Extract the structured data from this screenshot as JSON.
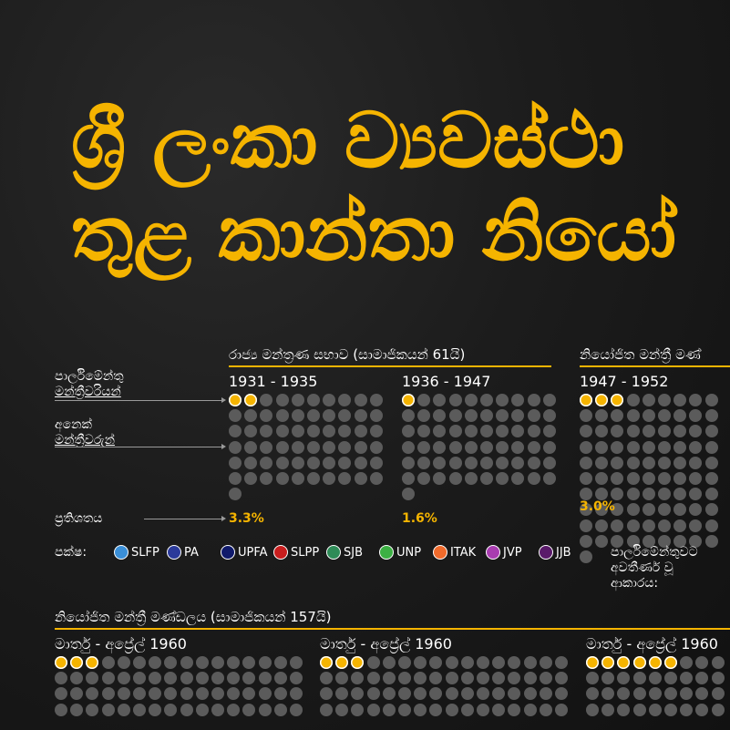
{
  "title": {
    "line1": "ශ්‍රී ලංකා ව්‍යවස්ථා",
    "line2": "තුළ කාන්තා නියෝ"
  },
  "labels": {
    "women_mps": [
      "පාර්ලිමේන්තු",
      "මන්ත්‍රීවරියන්"
    ],
    "other_mps": [
      "අනෙක්",
      "මන්ත්‍රීවරුන්"
    ],
    "percentage": "ප්‍රතිශතය",
    "party": "පක්ෂ:",
    "entry_mode": [
      "පාර්ලිමේන්තුවට",
      "අවතීර්ණ වූ",
      "ආකාරය:"
    ]
  },
  "legend": [
    {
      "name": "SLFP",
      "color": "#3a8fd8"
    },
    {
      "name": "PA",
      "color": "#2b3a9a"
    },
    {
      "name": "UPFA",
      "color": "#101a6b"
    },
    {
      "name": "SLPP",
      "color": "#c81e1e"
    },
    {
      "name": "SJB",
      "color": "#2e8b57"
    },
    {
      "name": "UNP",
      "color": "#3cb043"
    },
    {
      "name": "ITAK",
      "color": "#ef6a2b"
    },
    {
      "name": "JVP",
      "color": "#a83cb0"
    },
    {
      "name": "JJB",
      "color": "#5a1a6a"
    }
  ],
  "colors": {
    "accent": "#f5b400",
    "seat": "#5b5b5b",
    "background": "#1c1c1c"
  },
  "chart_data": [
    {
      "type": "waffle",
      "section": "රාජ්‍ය මන්ත්‍රණ සභාව (සාමාජිකයන් 61යි)",
      "periods": [
        {
          "label": "1931 - 1935",
          "women": 2,
          "total": 61,
          "percent": "3.3%"
        },
        {
          "label": "1936 - 1947",
          "women": 1,
          "total": 61,
          "percent": "1.6%"
        }
      ]
    },
    {
      "type": "waffle",
      "section": "නියෝජිත මන්ත්‍රී මණ්",
      "periods": [
        {
          "label": "1947 - 1952",
          "women": 3,
          "total": 101,
          "percent": "3.0%"
        }
      ]
    },
    {
      "type": "waffle",
      "section": "නියෝජිත මන්ත්‍රී මණ්ඩලය (සාමාජිකයන් 157යි)",
      "periods": [
        {
          "label": "මාර්තු - අප්‍රේල් 1960",
          "women": 3,
          "total": 157
        },
        {
          "label": "මාර්තු - අප්‍රේල් 1960",
          "women": 3,
          "total": 157
        },
        {
          "label": "මාර්තු - අප්‍රේල් 1960",
          "women": 6,
          "total": 157
        }
      ]
    }
  ]
}
